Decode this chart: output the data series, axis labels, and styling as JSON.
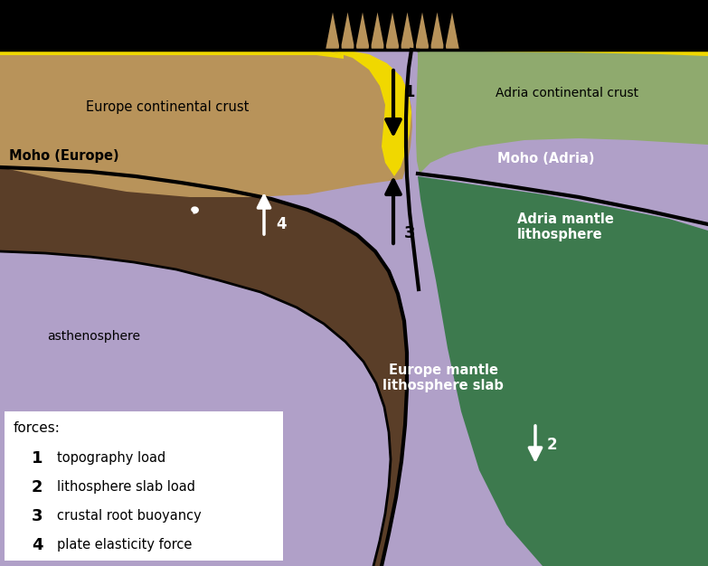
{
  "bg_color": "#000000",
  "asthenosphere_color": "#b0a0c8",
  "europe_crust_color": "#b8935a",
  "europe_mantle_color": "#5a3e28",
  "adria_crust_color": "#8faa6e",
  "adria_mantle_color": "#3d7a4e",
  "yellow_color": "#f0d800",
  "label_europe_crust": "Europe continental crust",
  "label_moho_europe": "Moho (Europe)",
  "label_adria_crust": "Adria continental crust",
  "label_moho_adria": "Moho (Adria)",
  "label_adria_mantle": "Adria mantle\nlithosphere",
  "label_asthenosphere": "asthenosphere",
  "label_europe_mantle": "Europe mantle\nlithosphere slab",
  "title_forces": "forces:",
  "legend_items": [
    [
      "1",
      "topography load"
    ],
    [
      "2",
      "lithosphere slab load"
    ],
    [
      "3",
      "crustal root buoyancy"
    ],
    [
      "4",
      "plate elasticity force"
    ]
  ]
}
